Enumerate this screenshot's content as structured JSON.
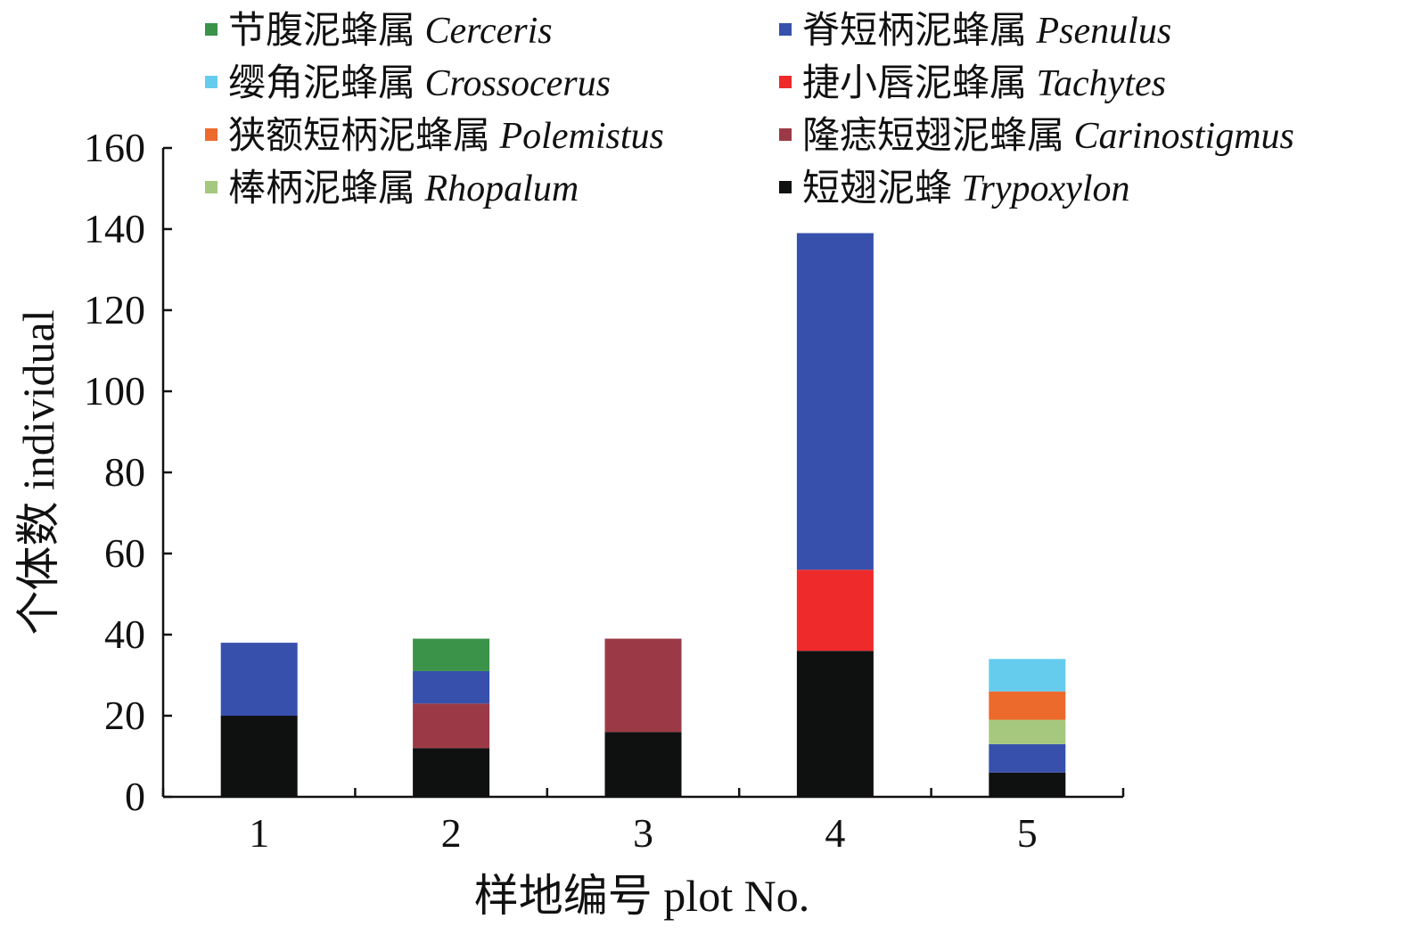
{
  "chart_data": {
    "type": "bar",
    "stacked": true,
    "title": "",
    "xlabel": "样地编号 plot No.",
    "ylabel": "个体数 individual",
    "ylim": [
      0,
      160
    ],
    "yticks": [
      0,
      20,
      40,
      60,
      80,
      100,
      120,
      140,
      160
    ],
    "categories": [
      "1",
      "2",
      "3",
      "4",
      "5"
    ],
    "legend_position": "top",
    "series": [
      {
        "name": "短翅泥蜂",
        "latin": "Trypoxylon",
        "color": "#0f1010",
        "values": [
          20,
          12,
          16,
          36,
          6
        ]
      },
      {
        "name": "隆痣短翅泥蜂属",
        "latin": "Carinostigmus",
        "color": "#9b3a46",
        "values": [
          0,
          11,
          23,
          0,
          0
        ]
      },
      {
        "name": "捷小唇泥蜂属",
        "latin": "Tachytes",
        "color": "#ee2a2a",
        "values": [
          0,
          0,
          0,
          20,
          0
        ]
      },
      {
        "name": "脊短柄泥蜂属",
        "latin": "Psenulus",
        "color": "#3750ac",
        "values": [
          18,
          8,
          0,
          83,
          7
        ]
      },
      {
        "name": "节腹泥蜂属",
        "latin": "Cerceris",
        "color": "#3a9349",
        "values": [
          0,
          8,
          0,
          0,
          0
        ]
      },
      {
        "name": "棒柄泥蜂属",
        "latin": "Rhopalum",
        "color": "#a6c87e",
        "values": [
          0,
          0,
          0,
          0,
          6
        ]
      },
      {
        "name": "狭额短柄泥蜂属",
        "latin": "Polemistus",
        "color": "#ec6a2c",
        "values": [
          0,
          0,
          0,
          0,
          7
        ]
      },
      {
        "name": "缨角泥蜂属",
        "latin": "Crossocerus",
        "color": "#66ccee",
        "values": [
          0,
          0,
          0,
          0,
          8
        ]
      }
    ],
    "legend_order": [
      [
        "节腹泥蜂属",
        "脊短柄泥蜂属"
      ],
      [
        "缨角泥蜂属",
        "捷小唇泥蜂属"
      ],
      [
        "狭额短柄泥蜂属",
        "隆痣短翅泥蜂属"
      ],
      [
        "棒柄泥蜂属",
        "短翅泥蜂"
      ]
    ]
  }
}
